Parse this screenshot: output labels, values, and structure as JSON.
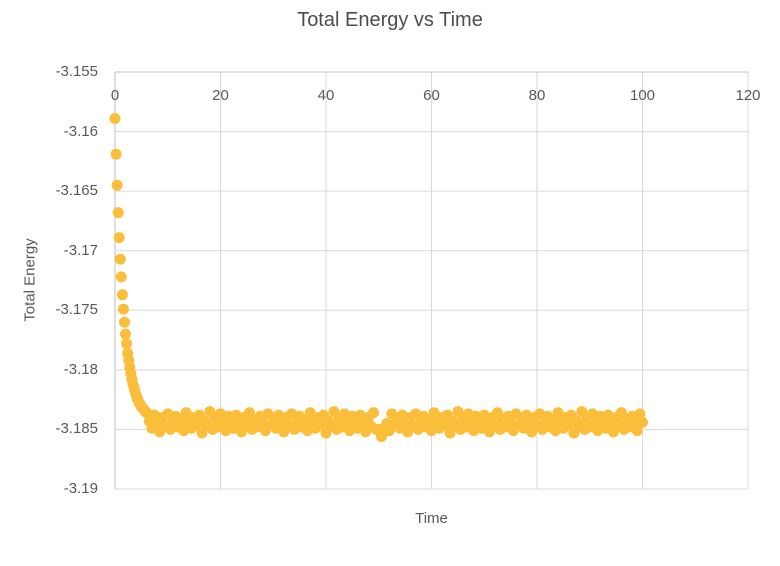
{
  "chart_data": {
    "type": "scatter",
    "title": "Total Energy vs Time",
    "xlabel": "Time",
    "ylabel": "Total Energy",
    "xlim": [
      0,
      120
    ],
    "ylim": [
      -3.19,
      -3.155
    ],
    "grid": true,
    "legend": "none",
    "x_ticks": [
      0,
      20,
      40,
      60,
      80,
      100,
      120
    ],
    "y_ticks": [
      -3.155,
      -3.16,
      -3.165,
      -3.17,
      -3.175,
      -3.18,
      -3.185,
      -3.19
    ],
    "x_tick_labels": [
      "0",
      "20",
      "40",
      "60",
      "80",
      "100",
      "120"
    ],
    "y_tick_labels": [
      "-3.155",
      "-3.16",
      "-3.165",
      "-3.17",
      "-3.175",
      "-3.18",
      "-3.185",
      "-3.19"
    ],
    "colors": {
      "marker": "#FBBE3B",
      "grid": "#D9D9D9",
      "axis": "#BFBFBF",
      "text": "#595959",
      "background": "#FFFFFF"
    },
    "series": [
      {
        "name": "Total Energy",
        "marker": "circle",
        "marker_diameter_px": 11,
        "points": [
          [
            0,
            -3.1589
          ],
          [
            0.2,
            -3.1619
          ],
          [
            0.4,
            -3.1645
          ],
          [
            0.6,
            -3.1668
          ],
          [
            0.8,
            -3.1689
          ],
          [
            1,
            -3.1707
          ],
          [
            1.2,
            -3.1722
          ],
          [
            1.4,
            -3.1737
          ],
          [
            1.6,
            -3.1749
          ],
          [
            1.8,
            -3.176
          ],
          [
            2,
            -3.177
          ],
          [
            2.2,
            -3.1778
          ],
          [
            2.4,
            -3.1786
          ],
          [
            2.6,
            -3.1792
          ],
          [
            2.8,
            -3.1798
          ],
          [
            3,
            -3.1803
          ],
          [
            3.2,
            -3.1808
          ],
          [
            3.4,
            -3.1812
          ],
          [
            3.6,
            -3.1815
          ],
          [
            3.8,
            -3.1818
          ],
          [
            4,
            -3.1821
          ],
          [
            4.2,
            -3.1824
          ],
          [
            4.4,
            -3.1826
          ],
          [
            4.6,
            -3.1828
          ],
          [
            4.8,
            -3.1829
          ],
          [
            5,
            -3.1831
          ],
          [
            5.2,
            -3.1832
          ],
          [
            5.4,
            -3.1833
          ],
          [
            5.6,
            -3.1834
          ],
          [
            5.8,
            -3.1835
          ],
          [
            6,
            -3.1836
          ],
          [
            6.5,
            -3.1843
          ],
          [
            7,
            -3.1849
          ],
          [
            7.5,
            -3.1838
          ],
          [
            8,
            -3.1846
          ],
          [
            8.5,
            -3.1852
          ],
          [
            9,
            -3.184
          ],
          [
            9.5,
            -3.1847
          ],
          [
            10,
            -3.1837
          ],
          [
            10.5,
            -3.185
          ],
          [
            11,
            -3.1844
          ],
          [
            11.5,
            -3.1839
          ],
          [
            12,
            -3.1848
          ],
          [
            12.5,
            -3.1842
          ],
          [
            13,
            -3.1851
          ],
          [
            13.5,
            -3.1836
          ],
          [
            14,
            -3.1845
          ],
          [
            14.5,
            -3.1849
          ],
          [
            15,
            -3.184
          ],
          [
            15.5,
            -3.1846
          ],
          [
            16,
            -3.1838
          ],
          [
            16.5,
            -3.1853
          ],
          [
            17,
            -3.1843
          ],
          [
            17.5,
            -3.1847
          ],
          [
            18,
            -3.1835
          ],
          [
            18.5,
            -3.185
          ],
          [
            19,
            -3.1841
          ],
          [
            19.5,
            -3.1848
          ],
          [
            20,
            -3.1837
          ],
          [
            20.5,
            -3.1844
          ],
          [
            21,
            -3.1851
          ],
          [
            21.5,
            -3.1839
          ],
          [
            22,
            -3.1846
          ],
          [
            22.5,
            -3.1849
          ],
          [
            23,
            -3.1838
          ],
          [
            23.5,
            -3.1845
          ],
          [
            24,
            -3.1852
          ],
          [
            24.5,
            -3.184
          ],
          [
            25,
            -3.1847
          ],
          [
            25.5,
            -3.1836
          ],
          [
            26,
            -3.185
          ],
          [
            26.5,
            -3.1842
          ],
          [
            27,
            -3.1848
          ],
          [
            27.5,
            -3.1839
          ],
          [
            28,
            -3.1845
          ],
          [
            28.5,
            -3.1851
          ],
          [
            29,
            -3.1837
          ],
          [
            29.5,
            -3.1846
          ],
          [
            30,
            -3.1843
          ],
          [
            30.5,
            -3.1849
          ],
          [
            31,
            -3.1838
          ],
          [
            31.5,
            -3.1846
          ],
          [
            32,
            -3.1852
          ],
          [
            32.5,
            -3.184
          ],
          [
            33,
            -3.1847
          ],
          [
            33.5,
            -3.1837
          ],
          [
            34,
            -3.185
          ],
          [
            34.5,
            -3.1844
          ],
          [
            35,
            -3.1839
          ],
          [
            35.5,
            -3.1848
          ],
          [
            36,
            -3.1842
          ],
          [
            36.5,
            -3.1851
          ],
          [
            37,
            -3.1836
          ],
          [
            37.5,
            -3.1845
          ],
          [
            38,
            -3.1849
          ],
          [
            38.5,
            -3.184
          ],
          [
            39,
            -3.1846
          ],
          [
            39.5,
            -3.1838
          ],
          [
            40,
            -3.1853
          ],
          [
            40.5,
            -3.1843
          ],
          [
            41,
            -3.1847
          ],
          [
            41.5,
            -3.1835
          ],
          [
            42,
            -3.185
          ],
          [
            42.5,
            -3.1841
          ],
          [
            43,
            -3.1848
          ],
          [
            43.5,
            -3.1837
          ],
          [
            44,
            -3.1844
          ],
          [
            44.5,
            -3.1851
          ],
          [
            45,
            -3.1839
          ],
          [
            45.5,
            -3.1846
          ],
          [
            46,
            -3.1849
          ],
          [
            46.5,
            -3.1838
          ],
          [
            47,
            -3.1845
          ],
          [
            47.5,
            -3.1852
          ],
          [
            48,
            -3.184
          ],
          [
            48.5,
            -3.1847
          ],
          [
            49,
            -3.1836
          ],
          [
            49.5,
            -3.185
          ],
          [
            50,
            -3.185
          ],
          [
            50.5,
            -3.1856
          ],
          [
            51,
            -3.1852
          ],
          [
            51.5,
            -3.1845
          ],
          [
            52,
            -3.1851
          ],
          [
            52.5,
            -3.1837
          ],
          [
            53,
            -3.1846
          ],
          [
            53.5,
            -3.1843
          ],
          [
            54,
            -3.1849
          ],
          [
            54.5,
            -3.1838
          ],
          [
            55,
            -3.1846
          ],
          [
            55.5,
            -3.1852
          ],
          [
            56,
            -3.184
          ],
          [
            56.5,
            -3.1847
          ],
          [
            57,
            -3.1837
          ],
          [
            57.5,
            -3.185
          ],
          [
            58,
            -3.1844
          ],
          [
            58.5,
            -3.1839
          ],
          [
            59,
            -3.1848
          ],
          [
            59.5,
            -3.1842
          ],
          [
            60,
            -3.1851
          ],
          [
            60.5,
            -3.1836
          ],
          [
            61,
            -3.1845
          ],
          [
            61.5,
            -3.1849
          ],
          [
            62,
            -3.184
          ],
          [
            62.5,
            -3.1846
          ],
          [
            63,
            -3.1838
          ],
          [
            63.5,
            -3.1853
          ],
          [
            64,
            -3.1843
          ],
          [
            64.5,
            -3.1847
          ],
          [
            65,
            -3.1835
          ],
          [
            65.5,
            -3.185
          ],
          [
            66,
            -3.1841
          ],
          [
            66.5,
            -3.1848
          ],
          [
            67,
            -3.1837
          ],
          [
            67.5,
            -3.1844
          ],
          [
            68,
            -3.1851
          ],
          [
            68.5,
            -3.1839
          ],
          [
            69,
            -3.1846
          ],
          [
            69.5,
            -3.1849
          ],
          [
            70,
            -3.1838
          ],
          [
            70.5,
            -3.1845
          ],
          [
            71,
            -3.1852
          ],
          [
            71.5,
            -3.184
          ],
          [
            72,
            -3.1847
          ],
          [
            72.5,
            -3.1836
          ],
          [
            73,
            -3.185
          ],
          [
            73.5,
            -3.1842
          ],
          [
            74,
            -3.1848
          ],
          [
            74.5,
            -3.1839
          ],
          [
            75,
            -3.1845
          ],
          [
            75.5,
            -3.1851
          ],
          [
            76,
            -3.1837
          ],
          [
            76.5,
            -3.1846
          ],
          [
            77,
            -3.1843
          ],
          [
            77.5,
            -3.1849
          ],
          [
            78,
            -3.1838
          ],
          [
            78.5,
            -3.1846
          ],
          [
            79,
            -3.1852
          ],
          [
            79.5,
            -3.184
          ],
          [
            80,
            -3.1847
          ],
          [
            80.5,
            -3.1837
          ],
          [
            81,
            -3.185
          ],
          [
            81.5,
            -3.1844
          ],
          [
            82,
            -3.1839
          ],
          [
            82.5,
            -3.1848
          ],
          [
            83,
            -3.1842
          ],
          [
            83.5,
            -3.1851
          ],
          [
            84,
            -3.1836
          ],
          [
            84.5,
            -3.1845
          ],
          [
            85,
            -3.1849
          ],
          [
            85.5,
            -3.184
          ],
          [
            86,
            -3.1846
          ],
          [
            86.5,
            -3.1838
          ],
          [
            87,
            -3.1853
          ],
          [
            87.5,
            -3.1843
          ],
          [
            88,
            -3.1847
          ],
          [
            88.5,
            -3.1835
          ],
          [
            89,
            -3.185
          ],
          [
            89.5,
            -3.1841
          ],
          [
            90,
            -3.1848
          ],
          [
            90.5,
            -3.1837
          ],
          [
            91,
            -3.1844
          ],
          [
            91.5,
            -3.1851
          ],
          [
            92,
            -3.1839
          ],
          [
            92.5,
            -3.1846
          ],
          [
            93,
            -3.1849
          ],
          [
            93.5,
            -3.1838
          ],
          [
            94,
            -3.1845
          ],
          [
            94.5,
            -3.1852
          ],
          [
            95,
            -3.184
          ],
          [
            95.5,
            -3.1847
          ],
          [
            96,
            -3.1836
          ],
          [
            96.5,
            -3.185
          ],
          [
            97,
            -3.1842
          ],
          [
            97.5,
            -3.1848
          ],
          [
            98,
            -3.1839
          ],
          [
            98.5,
            -3.1845
          ],
          [
            99,
            -3.1851
          ],
          [
            99.5,
            -3.1837
          ],
          [
            100,
            -3.1844
          ]
        ]
      }
    ]
  }
}
